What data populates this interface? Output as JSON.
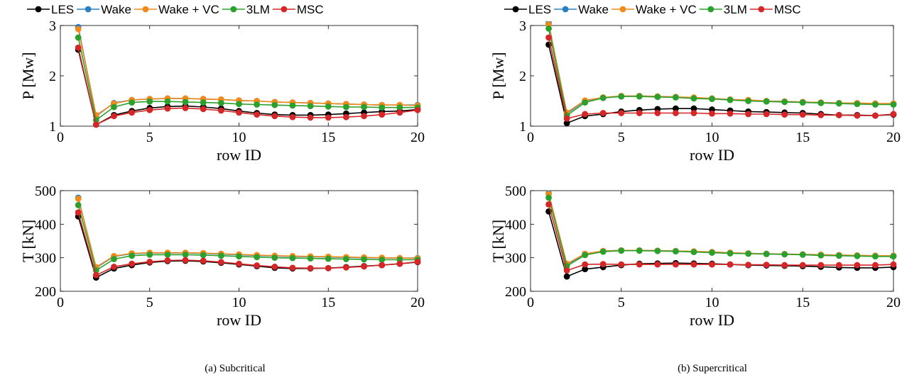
{
  "legend": [
    "LES",
    "Wake",
    "Wake + VC",
    "3LM",
    "MSC"
  ],
  "series_colors": {
    "LES": "#000000",
    "Wake": "#2a7fbf",
    "Wake + VC": "#f28a1a",
    "3LM": "#2ca02c",
    "MSC": "#d62728"
  },
  "captions": [
    "(a) Subcritical",
    "(b) Supercritical"
  ],
  "chart_data": [
    {
      "type": "line",
      "panel": "subcritical-power",
      "xlabel": "row ID",
      "ylabel": "P [Mw]",
      "xlim": [
        0,
        20
      ],
      "ylim": [
        1,
        3
      ],
      "xticks": [
        0,
        5,
        10,
        15,
        20
      ],
      "yticks": [
        1,
        2,
        3
      ],
      "grid": false,
      "legend_position": "top",
      "x": [
        1,
        2,
        3,
        4,
        5,
        6,
        7,
        8,
        9,
        10,
        11,
        12,
        13,
        14,
        15,
        16,
        17,
        18,
        19,
        20
      ],
      "series": [
        {
          "name": "LES",
          "values": [
            2.52,
            1.03,
            1.22,
            1.3,
            1.36,
            1.39,
            1.4,
            1.38,
            1.35,
            1.3,
            1.26,
            1.23,
            1.22,
            1.22,
            1.23,
            1.25,
            1.27,
            1.29,
            1.3,
            1.33
          ]
        },
        {
          "name": "Wake",
          "values": [
            2.97,
            1.2,
            1.46,
            1.52,
            1.54,
            1.55,
            1.55,
            1.54,
            1.53,
            1.51,
            1.5,
            1.48,
            1.47,
            1.46,
            1.45,
            1.44,
            1.43,
            1.42,
            1.42,
            1.42
          ]
        },
        {
          "name": "Wake + VC",
          "values": [
            2.93,
            1.22,
            1.45,
            1.52,
            1.54,
            1.55,
            1.55,
            1.54,
            1.53,
            1.51,
            1.5,
            1.48,
            1.47,
            1.46,
            1.45,
            1.44,
            1.43,
            1.42,
            1.42,
            1.41
          ]
        },
        {
          "name": "3LM",
          "values": [
            2.76,
            1.12,
            1.38,
            1.47,
            1.49,
            1.49,
            1.48,
            1.47,
            1.46,
            1.44,
            1.43,
            1.42,
            1.41,
            1.4,
            1.39,
            1.38,
            1.38,
            1.37,
            1.37,
            1.37
          ]
        },
        {
          "name": "MSC",
          "values": [
            2.56,
            1.03,
            1.2,
            1.27,
            1.32,
            1.35,
            1.36,
            1.34,
            1.31,
            1.27,
            1.23,
            1.2,
            1.18,
            1.17,
            1.17,
            1.18,
            1.2,
            1.23,
            1.27,
            1.32
          ]
        }
      ]
    },
    {
      "type": "line",
      "panel": "subcritical-thrust",
      "xlabel": "row ID",
      "ylabel": "T [kN]",
      "xlim": [
        0,
        20
      ],
      "ylim": [
        200,
        500
      ],
      "xticks": [
        0,
        5,
        10,
        15,
        20
      ],
      "yticks": [
        200,
        300,
        400,
        500
      ],
      "grid": false,
      "x": [
        1,
        2,
        3,
        4,
        5,
        6,
        7,
        8,
        9,
        10,
        11,
        12,
        13,
        14,
        15,
        16,
        17,
        18,
        19,
        20
      ],
      "series": [
        {
          "name": "LES",
          "values": [
            423,
            241,
            268,
            278,
            286,
            290,
            291,
            289,
            285,
            280,
            275,
            270,
            268,
            268,
            269,
            272,
            275,
            278,
            282,
            287
          ]
        },
        {
          "name": "Wake",
          "values": [
            479,
            270,
            304,
            312,
            314,
            314,
            314,
            313,
            311,
            309,
            307,
            305,
            304,
            303,
            302,
            301,
            300,
            299,
            299,
            299
          ]
        },
        {
          "name": "Wake + VC",
          "values": [
            476,
            272,
            305,
            313,
            315,
            315,
            315,
            314,
            312,
            310,
            308,
            306,
            305,
            304,
            303,
            302,
            301,
            300,
            299,
            298
          ]
        },
        {
          "name": "3LM",
          "values": [
            457,
            262,
            296,
            306,
            309,
            309,
            309,
            308,
            306,
            304,
            302,
            300,
            299,
            298,
            297,
            296,
            295,
            294,
            294,
            294
          ]
        },
        {
          "name": "MSC",
          "values": [
            435,
            248,
            273,
            282,
            288,
            292,
            293,
            291,
            287,
            282,
            277,
            273,
            270,
            269,
            269,
            271,
            274,
            278,
            282,
            288
          ]
        }
      ]
    },
    {
      "type": "line",
      "panel": "supercritical-power",
      "xlabel": "row ID",
      "ylabel": "P [Mw]",
      "xlim": [
        0,
        20
      ],
      "ylim": [
        1,
        3
      ],
      "xticks": [
        0,
        5,
        10,
        15,
        20
      ],
      "yticks": [
        1,
        2,
        3
      ],
      "grid": false,
      "legend_position": "top",
      "x": [
        1,
        2,
        3,
        4,
        5,
        6,
        7,
        8,
        9,
        10,
        11,
        12,
        13,
        14,
        15,
        16,
        17,
        18,
        19,
        20
      ],
      "series": [
        {
          "name": "LES",
          "values": [
            2.62,
            1.06,
            1.2,
            1.24,
            1.29,
            1.32,
            1.34,
            1.35,
            1.35,
            1.33,
            1.31,
            1.29,
            1.28,
            1.27,
            1.26,
            1.24,
            1.22,
            1.22,
            1.21,
            1.23
          ]
        },
        {
          "name": "Wake",
          "values": [
            3.05,
            1.25,
            1.5,
            1.57,
            1.59,
            1.6,
            1.59,
            1.58,
            1.56,
            1.55,
            1.53,
            1.51,
            1.5,
            1.49,
            1.48,
            1.47,
            1.46,
            1.45,
            1.45,
            1.44
          ]
        },
        {
          "name": "Wake + VC",
          "values": [
            3.02,
            1.27,
            1.51,
            1.57,
            1.6,
            1.6,
            1.59,
            1.58,
            1.57,
            1.55,
            1.53,
            1.52,
            1.5,
            1.49,
            1.48,
            1.47,
            1.46,
            1.46,
            1.45,
            1.45
          ]
        },
        {
          "name": "3LM",
          "values": [
            2.94,
            1.21,
            1.47,
            1.56,
            1.59,
            1.59,
            1.58,
            1.57,
            1.55,
            1.54,
            1.52,
            1.5,
            1.49,
            1.48,
            1.47,
            1.46,
            1.45,
            1.44,
            1.43,
            1.43
          ]
        },
        {
          "name": "MSC",
          "values": [
            2.76,
            1.15,
            1.24,
            1.26,
            1.26,
            1.26,
            1.26,
            1.26,
            1.26,
            1.25,
            1.25,
            1.24,
            1.24,
            1.23,
            1.23,
            1.22,
            1.22,
            1.21,
            1.21,
            1.24
          ]
        }
      ]
    },
    {
      "type": "line",
      "panel": "supercritical-thrust",
      "xlabel": "row ID",
      "ylabel": "T [kN]",
      "xlim": [
        0,
        20
      ],
      "ylim": [
        200,
        500
      ],
      "xticks": [
        0,
        5,
        10,
        15,
        20
      ],
      "yticks": [
        200,
        300,
        400,
        500
      ],
      "grid": false,
      "x": [
        1,
        2,
        3,
        4,
        5,
        6,
        7,
        8,
        9,
        10,
        11,
        12,
        13,
        14,
        15,
        16,
        17,
        18,
        19,
        20
      ],
      "series": [
        {
          "name": "LES",
          "values": [
            438,
            244,
            266,
            272,
            278,
            282,
            283,
            284,
            283,
            282,
            280,
            278,
            277,
            276,
            275,
            273,
            271,
            270,
            270,
            272
          ]
        },
        {
          "name": "Wake",
          "values": [
            492,
            280,
            311,
            320,
            322,
            322,
            321,
            320,
            318,
            317,
            315,
            313,
            312,
            311,
            310,
            309,
            308,
            307,
            306,
            306
          ]
        },
        {
          "name": "Wake + VC",
          "values": [
            490,
            282,
            312,
            320,
            322,
            322,
            321,
            320,
            319,
            317,
            315,
            313,
            312,
            311,
            310,
            309,
            308,
            307,
            306,
            306
          ]
        },
        {
          "name": "3LM",
          "values": [
            479,
            275,
            308,
            318,
            321,
            321,
            320,
            319,
            317,
            315,
            313,
            312,
            311,
            310,
            309,
            307,
            306,
            305,
            304,
            304
          ]
        },
        {
          "name": "MSC",
          "values": [
            459,
            262,
            280,
            281,
            280,
            280,
            280,
            280,
            280,
            280,
            280,
            279,
            279,
            278,
            278,
            278,
            278,
            278,
            278,
            280
          ]
        }
      ]
    }
  ]
}
